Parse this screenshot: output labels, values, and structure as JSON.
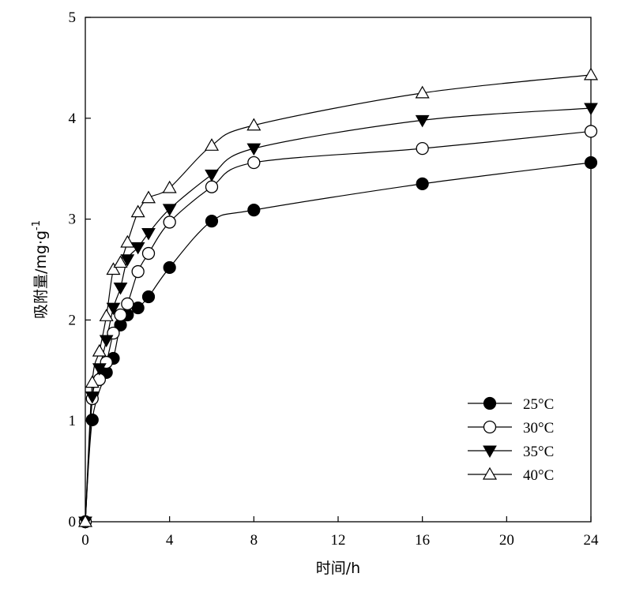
{
  "chart_data": {
    "type": "line",
    "title": "",
    "xlabel": "时间/h",
    "ylabel": "吸附量/mg·g",
    "ylabel_sup": "-1",
    "xlim": [
      0,
      24
    ],
    "ylim": [
      0,
      5
    ],
    "xticks": [
      0,
      4,
      8,
      12,
      16,
      20,
      24
    ],
    "yticks": [
      0,
      1,
      2,
      3,
      4,
      5
    ],
    "grid": false,
    "legend_position": "bottom-right",
    "series": [
      {
        "name": "25°C",
        "marker": "circle-filled",
        "x": [
          0,
          0.33,
          1,
          1.33,
          1.67,
          2,
          2.5,
          3,
          4,
          6,
          8,
          16,
          24
        ],
        "y": [
          0,
          1.01,
          1.48,
          1.62,
          1.95,
          2.05,
          2.12,
          2.23,
          2.52,
          2.98,
          3.09,
          3.35,
          3.56
        ]
      },
      {
        "name": "30°C",
        "marker": "circle-open",
        "x": [
          0,
          0.33,
          0.67,
          1,
          1.33,
          1.67,
          2,
          2.5,
          3,
          4,
          6,
          8,
          16,
          24
        ],
        "y": [
          0,
          1.22,
          1.41,
          1.58,
          1.87,
          2.05,
          2.16,
          2.48,
          2.66,
          2.97,
          3.32,
          3.56,
          3.7,
          3.87
        ]
      },
      {
        "name": "35°C",
        "marker": "triangle-down-filled",
        "x": [
          0,
          0.33,
          0.67,
          1,
          1.33,
          1.67,
          2,
          2.5,
          3,
          4,
          6,
          8,
          16,
          24
        ],
        "y": [
          0,
          1.24,
          1.52,
          1.8,
          2.12,
          2.32,
          2.6,
          2.72,
          2.86,
          3.1,
          3.44,
          3.7,
          3.98,
          4.1
        ]
      },
      {
        "name": "40°C",
        "marker": "triangle-up-open",
        "x": [
          0,
          0.33,
          0.67,
          1,
          1.33,
          1.67,
          2,
          2.5,
          3,
          4,
          6,
          8,
          16,
          24
        ],
        "y": [
          0,
          1.38,
          1.69,
          2.04,
          2.5,
          2.57,
          2.77,
          3.07,
          3.21,
          3.31,
          3.73,
          3.93,
          4.25,
          4.43
        ]
      }
    ]
  }
}
